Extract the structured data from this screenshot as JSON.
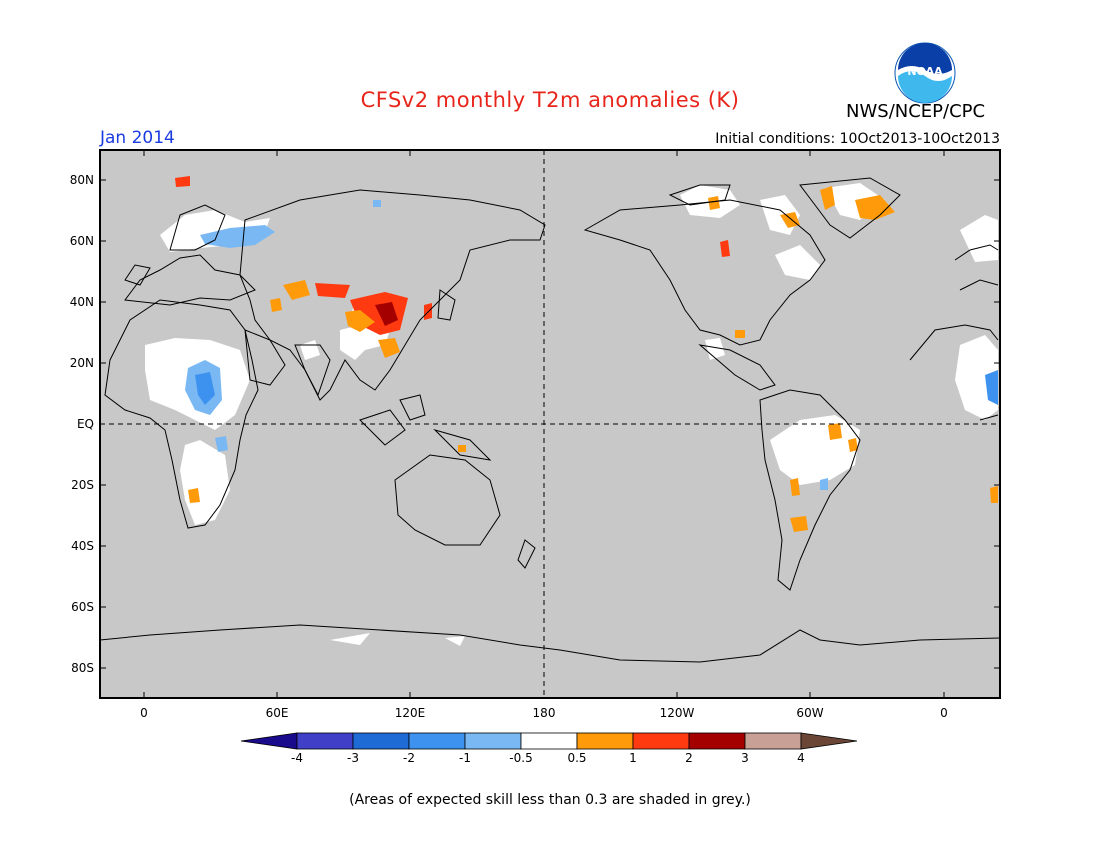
{
  "title": "CFSv2 monthly T2m anomalies (K)",
  "agency": "NWS/NCEP/CPC",
  "logo_text": "NOAA",
  "valid_label": "Jan 2014",
  "initial_conditions": "Initial conditions: 10Oct2013-10Oct2013",
  "latitude_labels": [
    "80N",
    "60N",
    "40N",
    "20N",
    "EQ",
    "20S",
    "40S",
    "60S",
    "80S"
  ],
  "longitude_labels": [
    "0",
    "60E",
    "120E",
    "180",
    "120W",
    "60W",
    "0"
  ],
  "colorbar": {
    "tick_labels": [
      "-4",
      "-3",
      "-2",
      "-1",
      "-0.5",
      "0.5",
      "1",
      "2",
      "3",
      "4"
    ],
    "bins": [
      {
        "range": "<-4",
        "color": "#1a0a8c"
      },
      {
        "range": "-4 to -3",
        "color": "#3f3fc8"
      },
      {
        "range": "-3 to -2",
        "color": "#1f6bd6"
      },
      {
        "range": "-2 to -1",
        "color": "#3d92f0"
      },
      {
        "range": "-1 to -0.5",
        "color": "#7ab8f4"
      },
      {
        "range": "-0.5 to 0.5",
        "color": "#ffffff"
      },
      {
        "range": "0.5 to 1",
        "color": "#ff9a0a"
      },
      {
        "range": "1 to 2",
        "color": "#ff3a10"
      },
      {
        "range": "2 to 3",
        "color": "#a50000"
      },
      {
        "range": "3 to 4",
        "color": "#c8a096"
      },
      {
        "range": ">4",
        "color": "#6b4535"
      }
    ]
  },
  "grey_color": "#c8c8c8",
  "footer_note": "(Areas of expected skill less than 0.3 are shaded in grey.)"
}
